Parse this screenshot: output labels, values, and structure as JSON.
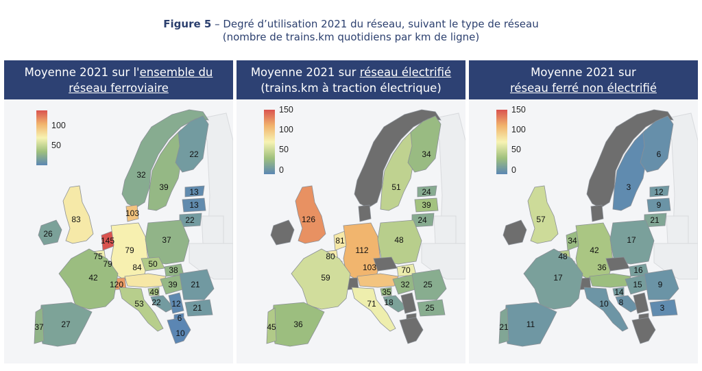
{
  "figure": {
    "label": "Figure 5",
    "title_rest": " – Degré d’utilisation 2021 du réseau, suivant le type de réseau",
    "subtitle": "(nombre de trains.km quotidiens par km de ligne)"
  },
  "colors": {
    "header_bg": "#2d4173",
    "no_data": "#6e6e6e",
    "scale": [
      "#5b86b3",
      "#9fc07d",
      "#f7f3b3",
      "#f1b46d",
      "#d9534f"
    ]
  },
  "panels": [
    {
      "head_pre": "Moyenne 2021 sur l'",
      "head_link1": "ensemble du",
      "head_line2_pre": "",
      "head_link2": "réseau ferroviaire",
      "legend": [
        "100",
        "50"
      ],
      "values": {
        "NO": "32",
        "SE": "39",
        "FI": "22",
        "EE": "13",
        "LV": "13",
        "LT": "22",
        "IE": "26",
        "UK": "83",
        "NL": "145",
        "BE": "75",
        "DK": "103",
        "DE": "79",
        "PL": "37",
        "LU": "79",
        "CZ": "50",
        "FR": "42",
        "CH": "120",
        "AT": "84",
        "SK": "38",
        "HU": "39",
        "SI": "49",
        "HR": "22",
        "RO": "21",
        "BG": "21",
        "IT": "53",
        "RS": "12",
        "GR": "10",
        "MK": "6",
        "ES": "27",
        "PT": "37"
      }
    },
    {
      "head_pre": "Moyenne 2021 sur ",
      "head_link1": "réseau électrifié",
      "head_line2_pre": "(trains.km à traction électrique)",
      "head_link2": "",
      "legend": [
        "150",
        "100",
        "50",
        "0"
      ],
      "values": {
        "SE": "51",
        "FI": "34",
        "EE": "24",
        "LV": "39",
        "LT": "24",
        "UK": "126",
        "NL": "81",
        "BE": "80",
        "DE": "112",
        "PL": "48",
        "FR": "59",
        "AT": "103",
        "SK": "70",
        "HU": "32",
        "SI": "35",
        "HR": "18",
        "RO": "25",
        "IT": "71",
        "BG": "25",
        "ES": "36",
        "PT": "45"
      }
    },
    {
      "head_pre": "Moyenne 2021 sur",
      "head_link1": "",
      "head_line2_pre": "",
      "head_link2": "réseau ferré non électrifié",
      "legend": [
        "150",
        "100",
        "50",
        "0"
      ],
      "values": {
        "SE": "3",
        "FI": "6",
        "EE": "12",
        "LV": "9",
        "LT": "21",
        "UK": "57",
        "NL": "34",
        "BE": "48",
        "DE": "42",
        "PL": "17",
        "FR": "17",
        "AT": "36",
        "SK": "16",
        "HU": "15",
        "SI": "14",
        "HR": "8",
        "RO": "9",
        "IT": "10",
        "BG": "3",
        "ES": "11",
        "PT": "21"
      }
    }
  ]
}
